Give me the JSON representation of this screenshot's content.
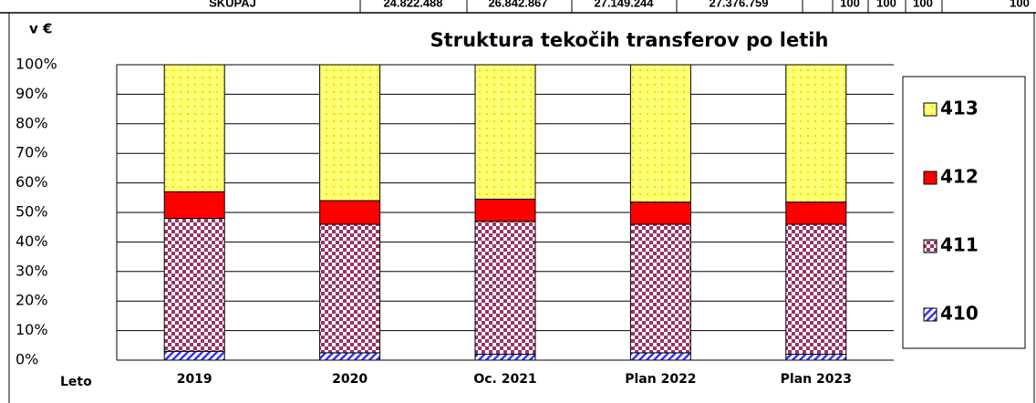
{
  "table_row": {
    "label": "SKUPAJ",
    "cells": [
      "24.822.488",
      "26.842.867",
      "27.149.244",
      "27.376.759",
      "100",
      "100",
      "100",
      "100"
    ]
  },
  "chart_data": {
    "type": "stacked_bar",
    "title": "Struktura tekočih transferov po letih",
    "ylabel": "v €",
    "xlabel": "Leto",
    "categories": [
      "2019",
      "2020",
      "Oc. 2021",
      "Plan 2022",
      "Plan 2023"
    ],
    "series": [
      {
        "name": "410",
        "color": "#3333ff",
        "values": [
          3,
          2.5,
          2,
          2.5,
          2
        ]
      },
      {
        "name": "411",
        "color": "#993366",
        "values": [
          45,
          43.5,
          45,
          43.5,
          44
        ]
      },
      {
        "name": "412",
        "color": "#ff0000",
        "values": [
          9,
          8,
          7.5,
          7.5,
          7.5
        ]
      },
      {
        "name": "413",
        "color": "#ffff66",
        "values": [
          43,
          46,
          45.5,
          46.5,
          46.5
        ]
      }
    ],
    "ylim": [
      0,
      100
    ],
    "yticks": [
      {
        "value": 0,
        "label": "0%"
      },
      {
        "value": 10,
        "label": "10%"
      },
      {
        "value": 20,
        "label": "20%"
      },
      {
        "value": 30,
        "label": "30%"
      },
      {
        "value": 40,
        "label": "40%"
      },
      {
        "value": 50,
        "label": "50%"
      },
      {
        "value": 60,
        "label": "60%"
      },
      {
        "value": 70,
        "label": "70%"
      },
      {
        "value": 80,
        "label": "80%"
      },
      {
        "value": 90,
        "label": "90%"
      },
      {
        "value": 100,
        "label": "100%"
      }
    ],
    "grid": true,
    "legend": "right"
  }
}
